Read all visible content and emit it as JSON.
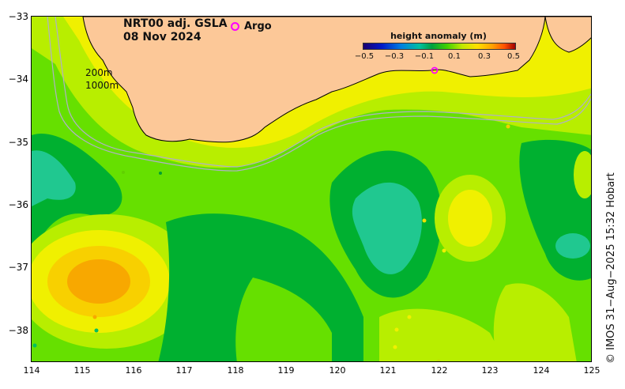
{
  "title": {
    "product": "NRT00 adj. GSLA",
    "date": "08 Nov 2024"
  },
  "legend": {
    "argo_label": "Argo",
    "argo_color": "#ff00ff"
  },
  "colorbar": {
    "title": "height anomaly (m)",
    "ticks": [
      "−0.5",
      "−0.3",
      "−0.1",
      "0.1",
      "0.3",
      "0.5"
    ]
  },
  "contours": {
    "depth1": "200m",
    "depth2": "1000m"
  },
  "axes": {
    "x_ticks": [
      "114",
      "115",
      "116",
      "117",
      "118",
      "119",
      "120",
      "121",
      "122",
      "123",
      "124",
      "125"
    ],
    "y_ticks": [
      "−33",
      "−34",
      "−35",
      "−36",
      "−37",
      "−38"
    ]
  },
  "credit": "© IMOS 31−Aug−2025 15:32 Hobart",
  "colors": {
    "land": "#fcc898",
    "ocean_base": "#66e000",
    "dark_green": "#00b030",
    "teal": "#20c890",
    "yellow_green": "#b8ee00",
    "yellow": "#f0f000",
    "gold": "#f8d000",
    "orange": "#f8a800"
  }
}
